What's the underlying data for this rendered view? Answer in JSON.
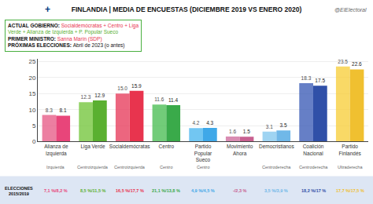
{
  "chart_data": {
    "type": "bar",
    "title": "FINLANDIA | MEDIA DE ENCUESTAS (DICIEMBRE 2019 VS ENERO 2020)",
    "subtitle": "@ElElectoral",
    "categories": [
      "Alianza de Izquierda",
      "Liga Verde",
      "Socialdemócratas",
      "Centro",
      "Partido Popular\nSueco",
      "Movimiento Ahora",
      "Democristianos",
      "Coalición Nacional",
      "Partido Finlandés"
    ],
    "series": [
      {
        "colors": [
          "#e8608a",
          "#78c840",
          "#e84060",
          "#50c058",
          "#50b8f0",
          "#d070a0",
          "#88caf0",
          "#4060b8",
          "#f8d040"
        ],
        "values": [
          8.3,
          12.3,
          15.0,
          11.6,
          4.2,
          1.6,
          3.1,
          18.3,
          23.5
        ],
        "value_labels": [
          "8.3",
          "12.3",
          "15.0",
          "11.6",
          "4.2",
          "1.6",
          "3.1",
          "18.3",
          "23.5"
        ]
      },
      {
        "colors": [
          "#e8457a",
          "#5ab030",
          "#e8344e",
          "#3aaa4a",
          "#3fa8e8",
          "#c86090",
          "#70b8e8",
          "#3050a8",
          "#f0c030"
        ],
        "values": [
          8.1,
          12.9,
          15.9,
          11.4,
          4.3,
          1.5,
          3.5,
          17.5,
          22.6
        ],
        "value_labels": [
          "8.1",
          "12.9",
          "15.9",
          "11.4",
          "4.3",
          "1.5",
          "3.5",
          "17.5",
          "22.6"
        ]
      }
    ],
    "ylim": [
      0,
      26
    ],
    "yticks": [
      0,
      5,
      10,
      15,
      20,
      25
    ],
    "grid": true,
    "data_labels": true,
    "annotations": [
      {
        "text": "+",
        "color": "#003580"
      },
      {
        "lines": [
          [
            {
              "text": "ACTUAL GOBIERNO: "
            },
            {
              "text": "Socialdemócratas + Centro + Liga",
              "color": "#e8344e"
            }
          ],
          [
            {
              "text": "Verde + Alianza de Izquierda + P. Popular Sueco",
              "color": "#5ab030"
            }
          ],
          [
            {
              "text": "PRIMER MINISTRO: "
            },
            {
              "text": "Sanna Marín (SDP)",
              "color": "#e8344e"
            }
          ],
          [
            {
              "text": "PRÓXIMAS ELECCIONES: "
            },
            {
              "text": "Abril de 2023 (o antes)"
            }
          ]
        ]
      },
      {
        "x": 0,
        "text": "Izquierda"
      },
      {
        "x": 1,
        "text": "Centroizquierda"
      },
      {
        "x": 2,
        "text": "Centroizquierda"
      },
      {
        "x": 3,
        "text": "Centro"
      },
      {
        "x": 4,
        "text": "Centro"
      },
      {
        "x": 6,
        "text": "Centroderecha"
      },
      {
        "x": 7,
        "text": "Centroderecha"
      },
      {
        "x": 8,
        "text": "Ultraderecha"
      },
      {
        "text": "ELECCIONES\n2015/2019"
      },
      {
        "x": 0,
        "text": "7,1 %/8,2 %",
        "color": "#e8457a"
      },
      {
        "x": 1,
        "text": "8,5 %/11,5 %",
        "color": "#5ab030"
      },
      {
        "x": 2,
        "text": "16,5 %/17,7 %",
        "color": "#e8344e"
      },
      {
        "x": 3,
        "text": "21,1 %/13,8 %",
        "color": "#3aaa4a"
      },
      {
        "x": 4,
        "text": "4,9 %/4,5 %",
        "color": "#3fa8e8"
      },
      {
        "x": 5,
        "text": "-/2,3 %",
        "color": "#c86090"
      },
      {
        "x": 6,
        "text": "3,5 %/3,9 %",
        "color": "#70b8e8"
      },
      {
        "x": 7,
        "text": "18,2 %/17 %",
        "color": "#3050a8"
      },
      {
        "x": 8,
        "text": "17,7 %/17,5 %",
        "color": "#f0c030"
      }
    ]
  }
}
